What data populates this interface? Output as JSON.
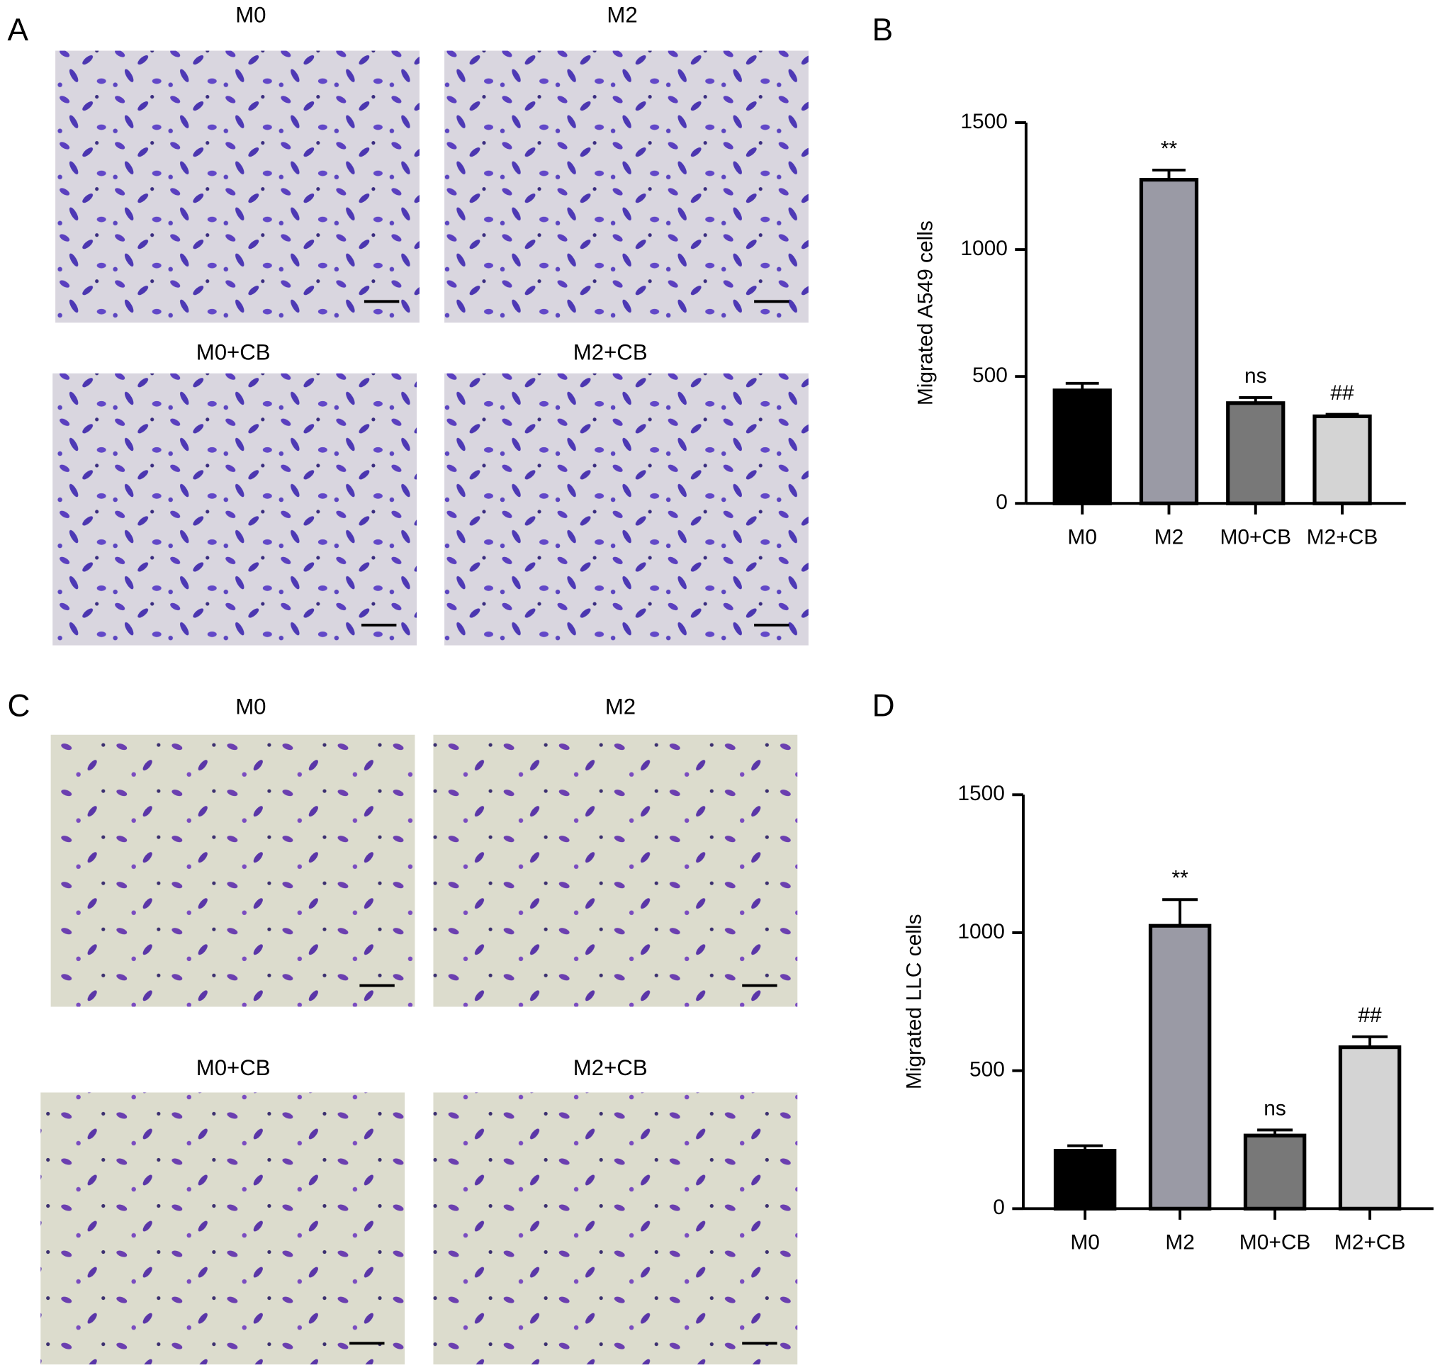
{
  "panel_labels": [
    "A",
    "B",
    "C",
    "D"
  ],
  "image_panels": [
    {
      "titles": [
        "M0",
        "M2",
        "M0+CB",
        "M2+CB"
      ]
    },
    {
      "titles": [
        "M0",
        "M2",
        "M0+CB",
        "M2+CB"
      ]
    }
  ],
  "chart_data": [
    {
      "type": "bar",
      "ylabel": "Migrated A549 cells",
      "categories": [
        "M0",
        "M2",
        "M0+CB",
        "M2+CB"
      ],
      "values": [
        445,
        1275,
        395,
        343
      ],
      "errors": [
        28,
        38,
        22,
        8
      ],
      "annotations": [
        null,
        "**",
        "ns",
        "##"
      ],
      "colors": [
        "#000000",
        "#9a9aa5",
        "#787878",
        "#d4d4d4"
      ],
      "ylim": [
        0,
        1500
      ],
      "yticks": [
        0,
        500,
        1000,
        1500
      ]
    },
    {
      "type": "bar",
      "ylabel": "Migrated LLC cells",
      "categories": [
        "M0",
        "M2",
        "M0+CB",
        "M2+CB"
      ],
      "values": [
        210,
        1025,
        265,
        585
      ],
      "errors": [
        18,
        95,
        20,
        38
      ],
      "annotations": [
        null,
        "**",
        "ns",
        "##"
      ],
      "colors": [
        "#000000",
        "#9a9aa5",
        "#787878",
        "#d4d4d4"
      ],
      "ylim": [
        0,
        1500
      ],
      "yticks": [
        0,
        500,
        1000,
        1500
      ]
    }
  ]
}
